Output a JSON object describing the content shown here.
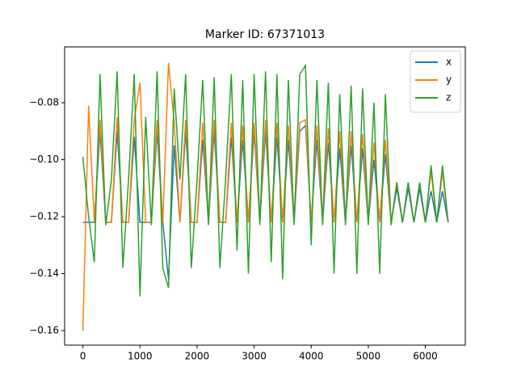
{
  "chart_data": {
    "type": "line",
    "title": "Marker ID: 67371013",
    "x": [
      0,
      100,
      200,
      300,
      400,
      500,
      600,
      700,
      800,
      900,
      1000,
      1100,
      1200,
      1300,
      1400,
      1500,
      1600,
      1700,
      1800,
      1900,
      2000,
      2100,
      2200,
      2300,
      2400,
      2500,
      2600,
      2700,
      2800,
      2900,
      3000,
      3100,
      3200,
      3300,
      3400,
      3500,
      3600,
      3700,
      3800,
      3900,
      4000,
      4100,
      4200,
      4300,
      4400,
      4500,
      4600,
      4700,
      4800,
      4900,
      5000,
      5100,
      5200,
      5300,
      5400,
      5500,
      5600,
      5700,
      5800,
      5900,
      6000,
      6100,
      6200,
      6300,
      6400
    ],
    "series": [
      {
        "name": "x",
        "color": "#1f77b4",
        "values": [
          -0.122,
          -0.122,
          -0.122,
          -0.09,
          -0.122,
          -0.122,
          -0.09,
          -0.122,
          -0.122,
          -0.092,
          -0.122,
          -0.122,
          -0.122,
          -0.09,
          -0.122,
          -0.142,
          -0.095,
          -0.122,
          -0.09,
          -0.122,
          -0.122,
          -0.093,
          -0.122,
          -0.09,
          -0.122,
          -0.122,
          -0.092,
          -0.122,
          -0.093,
          -0.122,
          -0.09,
          -0.122,
          -0.09,
          -0.122,
          -0.092,
          -0.122,
          -0.093,
          -0.122,
          -0.09,
          -0.088,
          -0.122,
          -0.093,
          -0.122,
          -0.094,
          -0.122,
          -0.096,
          -0.122,
          -0.095,
          -0.122,
          -0.096,
          -0.122,
          -0.1,
          -0.122,
          -0.098,
          -0.122,
          -0.11,
          -0.122,
          -0.11,
          -0.122,
          -0.11,
          -0.122,
          -0.111,
          -0.122,
          -0.111,
          -0.122
        ]
      },
      {
        "name": "y",
        "color": "#ff7f0e",
        "values": [
          -0.16,
          -0.081,
          -0.122,
          -0.086,
          -0.122,
          -0.122,
          -0.085,
          -0.122,
          -0.122,
          -0.086,
          -0.073,
          -0.122,
          -0.122,
          -0.086,
          -0.122,
          -0.066,
          -0.087,
          -0.122,
          -0.086,
          -0.122,
          -0.122,
          -0.087,
          -0.122,
          -0.086,
          -0.122,
          -0.122,
          -0.087,
          -0.122,
          -0.088,
          -0.122,
          -0.087,
          -0.122,
          -0.086,
          -0.122,
          -0.087,
          -0.122,
          -0.088,
          -0.122,
          -0.087,
          -0.086,
          -0.122,
          -0.088,
          -0.122,
          -0.089,
          -0.122,
          -0.09,
          -0.122,
          -0.09,
          -0.122,
          -0.091,
          -0.122,
          -0.094,
          -0.122,
          -0.093,
          -0.122,
          -0.108,
          -0.122,
          -0.108,
          -0.122,
          -0.108,
          -0.122,
          -0.104,
          -0.122,
          -0.104,
          -0.122
        ]
      },
      {
        "name": "z",
        "color": "#2ca02c",
        "values": [
          -0.099,
          -0.12,
          -0.136,
          -0.07,
          -0.123,
          -0.107,
          -0.069,
          -0.138,
          -0.107,
          -0.07,
          -0.148,
          -0.085,
          -0.123,
          -0.069,
          -0.138,
          -0.145,
          -0.075,
          -0.107,
          -0.07,
          -0.138,
          -0.107,
          -0.072,
          -0.123,
          -0.071,
          -0.138,
          -0.107,
          -0.07,
          -0.132,
          -0.072,
          -0.14,
          -0.07,
          -0.123,
          -0.069,
          -0.136,
          -0.07,
          -0.142,
          -0.072,
          -0.123,
          -0.07,
          -0.067,
          -0.13,
          -0.072,
          -0.123,
          -0.073,
          -0.14,
          -0.077,
          -0.123,
          -0.074,
          -0.14,
          -0.075,
          -0.123,
          -0.08,
          -0.14,
          -0.077,
          -0.123,
          -0.108,
          -0.122,
          -0.108,
          -0.122,
          -0.108,
          -0.122,
          -0.102,
          -0.122,
          -0.102,
          -0.122
        ]
      }
    ],
    "xlim": [
      -320,
      6700
    ],
    "ylim": [
      -0.1651,
      -0.0604
    ],
    "xticks": [
      0,
      1000,
      2000,
      3000,
      4000,
      5000,
      6000
    ],
    "yticks": [
      {
        "value": -0.16,
        "label": "−0.16"
      },
      {
        "value": -0.14,
        "label": "−0.14"
      },
      {
        "value": -0.12,
        "label": "−0.12"
      },
      {
        "value": -0.1,
        "label": "−0.10"
      },
      {
        "value": -0.08,
        "label": "−0.08"
      }
    ],
    "legend": "upper right"
  }
}
